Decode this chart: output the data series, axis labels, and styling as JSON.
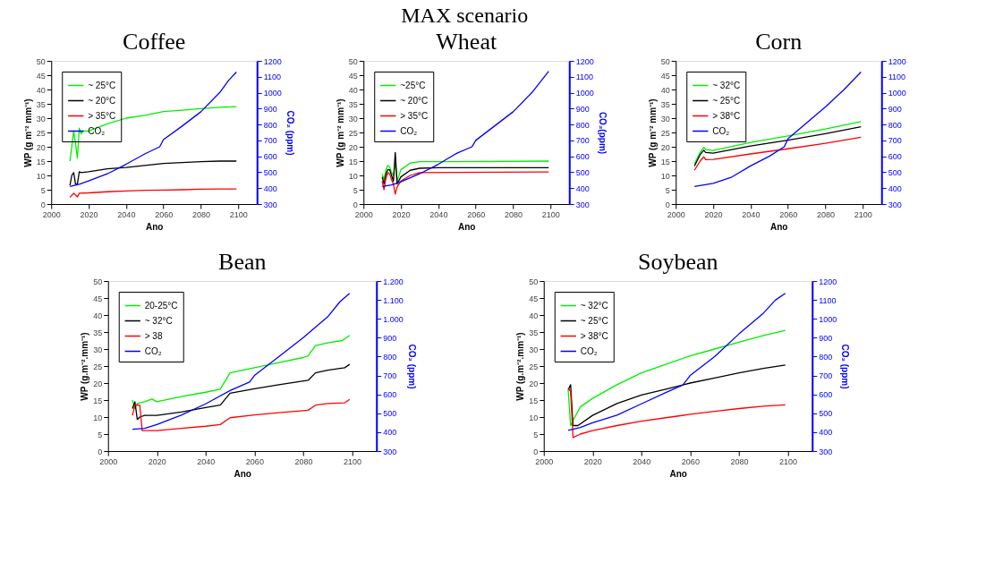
{
  "chart_data": [
    {
      "type": "line",
      "title": "Coffee",
      "annotations": [
        "MAX scenario"
      ],
      "xlabel": "Ano",
      "ylabel": "WP (g m⁻² mm⁻¹)",
      "y2label": "CO₂ (ppm)",
      "legend": "top left",
      "grid": false,
      "xlim": [
        2000,
        2110
      ],
      "xticks": [
        2000,
        2020,
        2040,
        2060,
        2080,
        2100
      ],
      "ylim": [
        0,
        50
      ],
      "yticks": [
        0,
        5,
        10,
        15,
        20,
        25,
        30,
        35,
        40,
        45,
        50
      ],
      "y2lim": [
        300,
        1200
      ],
      "y2ticks": [
        300,
        400,
        500,
        600,
        700,
        800,
        900,
        1000,
        1100,
        1200
      ],
      "series": [
        {
          "name": "~ 25°C",
          "color": "#00ee00",
          "x": [
            2010,
            2011,
            2012,
            2013,
            2014,
            2015,
            2016,
            2017,
            2020,
            2030,
            2040,
            2050,
            2060,
            2070,
            2080,
            2090,
            2099
          ],
          "values": [
            15,
            20,
            25.5,
            21,
            16,
            26.5,
            24.5,
            25.5,
            25.5,
            28,
            30,
            31,
            32.3,
            32.8,
            33.3,
            33.8,
            34
          ]
        },
        {
          "name": "~ 20°C",
          "color": "#000000",
          "x": [
            2010,
            2011,
            2012,
            2013,
            2014,
            2015,
            2016,
            2020,
            2030,
            2040,
            2050,
            2060,
            2070,
            2080,
            2090,
            2099
          ],
          "values": [
            6.5,
            10,
            11,
            7,
            7,
            11.3,
            11,
            11.3,
            12.3,
            12.8,
            13.5,
            14.2,
            14.5,
            14.8,
            15,
            15
          ]
        },
        {
          "name": "> 35°C",
          "color": "#ff0000",
          "x": [
            2010,
            2012,
            2014,
            2015,
            2020,
            2030,
            2040,
            2050,
            2060,
            2070,
            2080,
            2090,
            2099
          ],
          "values": [
            2.3,
            3.8,
            2.5,
            3.8,
            3.9,
            4.3,
            4.6,
            4.8,
            4.9,
            5,
            5.2,
            5.3,
            5.3
          ]
        },
        {
          "name": "CO₂",
          "color": "#0000ff",
          "axis": "y2",
          "x": [
            2010,
            2015,
            2020,
            2030,
            2040,
            2050,
            2058,
            2060,
            2070,
            2080,
            2090,
            2095,
            2099
          ],
          "values": [
            410,
            425,
            445,
            490,
            550,
            615,
            660,
            705,
            790,
            880,
            1000,
            1080,
            1130
          ]
        }
      ]
    },
    {
      "type": "line",
      "title": "Wheat",
      "xlabel": "Ano",
      "ylabel": "WP (g m⁻² mm⁻¹)",
      "y2label": "CO₂(ppm)",
      "legend": "top left",
      "grid": false,
      "xlim": [
        2000,
        2110
      ],
      "xticks": [
        2000,
        2020,
        2040,
        2060,
        2080,
        2100
      ],
      "ylim": [
        0,
        50
      ],
      "yticks": [
        0,
        5,
        10,
        15,
        20,
        25,
        30,
        35,
        40,
        45,
        50
      ],
      "y2lim": [
        300,
        1200
      ],
      "y2ticks": [
        300,
        400,
        500,
        600,
        700,
        800,
        900,
        1000,
        1100,
        1200
      ],
      "series": [
        {
          "name": "~25°C",
          "color": "#00ee00",
          "x": [
            2010,
            2011,
            2012,
            2013,
            2014,
            2015,
            2016,
            2017,
            2018,
            2020,
            2025,
            2030,
            2040,
            2099
          ],
          "values": [
            10.5,
            8.5,
            12,
            13.5,
            13,
            11,
            10,
            14.5,
            8,
            12,
            14.3,
            14.8,
            14.8,
            15
          ]
        },
        {
          "name": "~ 20°C",
          "color": "#000000",
          "x": [
            2010,
            2011,
            2012,
            2013,
            2014,
            2015,
            2016,
            2017,
            2018,
            2020,
            2025,
            2030,
            2040,
            2099
          ],
          "values": [
            9.5,
            7,
            10.5,
            12,
            12,
            10,
            8,
            18,
            7,
            9.5,
            11.8,
            12.5,
            12.7,
            12.7
          ]
        },
        {
          "name": "> 35°C",
          "color": "#ff0000",
          "x": [
            2010,
            2011,
            2012,
            2013,
            2014,
            2015,
            2016,
            2017,
            2018,
            2020,
            2025,
            2030,
            2099
          ],
          "values": [
            8,
            5,
            9,
            11,
            10.5,
            8.5,
            7,
            3.5,
            6,
            8,
            10,
            11,
            11.2
          ]
        },
        {
          "name": "CO₂",
          "color": "#0000ff",
          "axis": "y2",
          "x": [
            2010,
            2015,
            2020,
            2030,
            2040,
            2050,
            2058,
            2060,
            2070,
            2080,
            2090,
            2099
          ],
          "values": [
            410,
            420,
            440,
            490,
            550,
            620,
            660,
            700,
            790,
            880,
            1000,
            1135
          ]
        }
      ]
    },
    {
      "type": "line",
      "title": "Corn",
      "xlabel": "Ano",
      "ylabel": "WP (g m⁻² mm⁻¹)",
      "legend": "top left",
      "grid": false,
      "xlim": [
        2000,
        2110
      ],
      "xticks": [
        2000,
        2020,
        2040,
        2060,
        2080,
        2100
      ],
      "ylim": [
        0,
        50
      ],
      "yticks": [
        0,
        5,
        10,
        15,
        20,
        25,
        30,
        35,
        40,
        45,
        50
      ],
      "y2lim": [
        300,
        1200
      ],
      "y2ticks": [
        300,
        400,
        500,
        600,
        700,
        800,
        900,
        1000,
        1100,
        1200
      ],
      "series": [
        {
          "name": "~ 32°C",
          "color": "#00ee00",
          "x": [
            2010,
            2013,
            2015,
            2016,
            2020,
            2040,
            2060,
            2080,
            2099
          ],
          "values": [
            14,
            18,
            19.8,
            19,
            18.7,
            21.5,
            23.8,
            26.2,
            28.8
          ]
        },
        {
          "name": "~ 25°C",
          "color": "#000000",
          "x": [
            2010,
            2013,
            2015,
            2016,
            2020,
            2040,
            2060,
            2080,
            2099
          ],
          "values": [
            13.3,
            17.2,
            18.8,
            18,
            17.8,
            20.3,
            22.3,
            24.6,
            27
          ]
        },
        {
          "name": "> 38°C",
          "color": "#ff0000",
          "x": [
            2010,
            2013,
            2015,
            2016,
            2020,
            2040,
            2060,
            2080,
            2099
          ],
          "values": [
            11.8,
            15,
            16.5,
            15.5,
            15.6,
            17.5,
            19.3,
            21.2,
            23.3
          ]
        },
        {
          "name": "CO₂",
          "color": "#0000ff",
          "axis": "y2",
          "x": [
            2010,
            2020,
            2030,
            2040,
            2050,
            2058,
            2060,
            2070,
            2080,
            2090,
            2099
          ],
          "values": [
            410,
            430,
            470,
            540,
            600,
            660,
            710,
            810,
            910,
            1020,
            1130
          ]
        }
      ]
    },
    {
      "type": "line",
      "title": "Bean",
      "xlabel": "Ano",
      "ylabel": "WP (g.m⁻².mm⁻¹)",
      "y2label": "CO₂ (ppm)",
      "legend": "top left",
      "grid": false,
      "xlim": [
        2000,
        2110
      ],
      "xticks": [
        2000,
        2020,
        2040,
        2060,
        2080,
        2100
      ],
      "ylim": [
        0,
        50
      ],
      "yticks": [
        0,
        5,
        10,
        15,
        20,
        25,
        30,
        35,
        40,
        45,
        50
      ],
      "y2lim": [
        300,
        1200
      ],
      "y2ticks": [
        300,
        400,
        500,
        600,
        700,
        800,
        900,
        {
          "value": 1000,
          "label": "1.000"
        },
        {
          "value": 1100,
          "label": "1.100"
        },
        {
          "value": 1200,
          "label": "1.200"
        }
      ],
      "series": [
        {
          "name": "20-25°C",
          "color": "#00ee00",
          "x": [
            2010,
            2011,
            2012,
            2015,
            2018,
            2020,
            2030,
            2040,
            2046,
            2050,
            2060,
            2070,
            2080,
            2082,
            2085,
            2090,
            2096,
            2099
          ],
          "values": [
            15,
            12.5,
            14,
            14.5,
            15.3,
            14.5,
            16,
            17.3,
            18.2,
            23,
            24.5,
            26,
            27.5,
            28,
            31,
            31.8,
            32.5,
            34
          ]
        },
        {
          "name": "~ 32°C",
          "color": "#000000",
          "x": [
            2010,
            2011,
            2012,
            2013,
            2015,
            2020,
            2030,
            2040,
            2046,
            2050,
            2060,
            2070,
            2082,
            2085,
            2090,
            2097,
            2099
          ],
          "values": [
            12.5,
            14.5,
            9.3,
            10,
            10.5,
            10.5,
            11.5,
            12.8,
            13.5,
            17,
            18.3,
            19.5,
            20.8,
            23,
            23.8,
            24.5,
            25.5
          ]
        },
        {
          "name": "> 38",
          "color": "#ff0000",
          "x": [
            2010,
            2011,
            2013,
            2014,
            2016,
            2020,
            2030,
            2040,
            2046,
            2050,
            2060,
            2070,
            2082,
            2085,
            2090,
            2097,
            2099
          ],
          "values": [
            10.5,
            13.5,
            13.5,
            6,
            6,
            6,
            6.7,
            7.3,
            7.8,
            9.8,
            10.6,
            11.3,
            12,
            13.5,
            14,
            14.2,
            15.2
          ]
        },
        {
          "name": "CO₂",
          "color": "#0000ff",
          "axis": "y2",
          "x": [
            2010,
            2015,
            2020,
            2030,
            2040,
            2050,
            2058,
            2060,
            2070,
            2080,
            2090,
            2095,
            2099
          ],
          "values": [
            415,
            420,
            440,
            490,
            550,
            620,
            665,
            700,
            800,
            900,
            1010,
            1090,
            1135
          ]
        }
      ]
    },
    {
      "type": "line",
      "title": "Soybean",
      "xlabel": "Ano",
      "ylabel": "WP (g.m⁻².mm⁻¹)",
      "y2label": "CO₂ (ppm)",
      "legend": "top left",
      "grid": false,
      "xlim": [
        2000,
        2110
      ],
      "xticks": [
        2000,
        2020,
        2040,
        2060,
        2080,
        2100
      ],
      "ylim": [
        0,
        50
      ],
      "yticks": [
        0,
        5,
        10,
        15,
        20,
        25,
        30,
        35,
        40,
        45,
        50
      ],
      "y2lim": [
        300,
        1200
      ],
      "y2ticks": [
        300,
        400,
        500,
        600,
        700,
        800,
        900,
        1000,
        1100,
        1200
      ],
      "series": [
        {
          "name": "~ 32°C",
          "color": "#00ee00",
          "x": [
            2010,
            2011,
            2012,
            2015,
            2020,
            2030,
            2040,
            2050,
            2060,
            2070,
            2080,
            2090,
            2099
          ],
          "values": [
            18,
            7.5,
            9,
            13,
            15.5,
            19.5,
            23,
            25.5,
            28,
            30,
            32,
            34,
            35.5
          ]
        },
        {
          "name": "~ 25°C",
          "color": "#000000",
          "x": [
            2010,
            2011,
            2012,
            2014,
            2020,
            2030,
            2040,
            2050,
            2060,
            2070,
            2080,
            2090,
            2099
          ],
          "values": [
            18,
            19.5,
            7.5,
            7.5,
            10.5,
            14,
            16.5,
            18.2,
            20,
            21.5,
            23,
            24.3,
            25.3
          ]
        },
        {
          "name": "> 38°C",
          "color": "#ff0000",
          "x": [
            2010,
            2011,
            2012,
            2015,
            2020,
            2030,
            2040,
            2050,
            2060,
            2070,
            2080,
            2090,
            2099
          ],
          "values": [
            18.5,
            17.5,
            4,
            5,
            6,
            7.5,
            8.8,
            9.8,
            10.8,
            11.7,
            12.5,
            13.2,
            13.6
          ]
        },
        {
          "name": "CO₂",
          "color": "#0000ff",
          "axis": "y2",
          "x": [
            2010,
            2015,
            2020,
            2030,
            2040,
            2050,
            2057,
            2060,
            2070,
            2080,
            2090,
            2095,
            2099
          ],
          "values": [
            410,
            425,
            450,
            490,
            550,
            610,
            650,
            700,
            800,
            920,
            1030,
            1100,
            1135
          ]
        }
      ]
    }
  ]
}
